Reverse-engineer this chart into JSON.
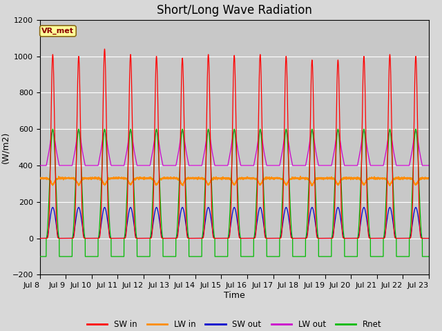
{
  "title": "Short/Long Wave Radiation",
  "ylabel": "(W/m2)",
  "xlabel": "Time",
  "ylim": [
    -200,
    1200
  ],
  "yticks": [
    -200,
    0,
    200,
    400,
    600,
    800,
    1000,
    1200
  ],
  "colors": {
    "SW_in": "#ff0000",
    "LW_in": "#ff8c00",
    "SW_out": "#0000cd",
    "LW_out": "#cc00cc",
    "Rnet": "#00bb00"
  },
  "legend_labels": [
    "SW in",
    "LW in",
    "SW out",
    "LW out",
    "Rnet"
  ],
  "station_label": "VR_met",
  "bg_color": "#d8d8d8",
  "plot_bg_color": "#d0d0d0",
  "n_days": 15,
  "points_per_day": 288,
  "start_day": 8,
  "SW_in_peaks": [
    1010,
    1000,
    1040,
    1010,
    1000,
    990,
    1010,
    1005,
    1010,
    1000,
    980,
    980,
    1000,
    1010,
    1000
  ],
  "title_fontsize": 12,
  "tick_fontsize": 8,
  "label_fontsize": 9
}
